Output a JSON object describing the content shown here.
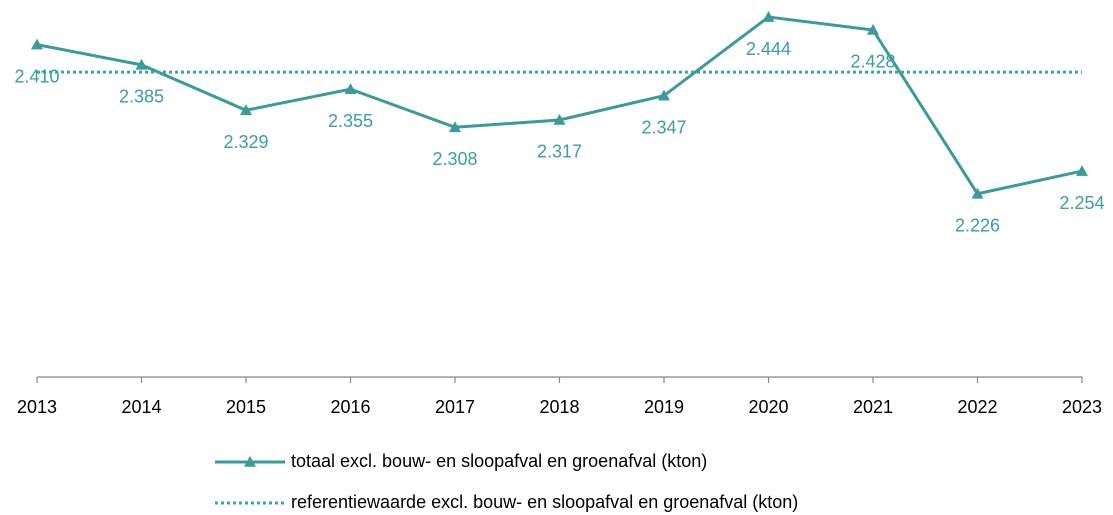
{
  "chart_data": {
    "type": "line",
    "x": [
      "2013",
      "2014",
      "2015",
      "2016",
      "2017",
      "2018",
      "2019",
      "2020",
      "2021",
      "2022",
      "2023"
    ],
    "ylim": [
      2000,
      2465
    ],
    "series": [
      {
        "name": "totaal excl. bouw- en sloopafval en groenafval (kton)",
        "color": "#3a9a9c",
        "style": "solid",
        "marker": "triangle",
        "values": [
          2410,
          2385,
          2329,
          2355,
          2308,
          2317,
          2347,
          2444,
          2428,
          2226,
          2254
        ],
        "value_labels": [
          "2.410",
          "2.385",
          "2.329",
          "2.355",
          "2.308",
          "2.317",
          "2.347",
          "2.444",
          "2.428",
          "2.226",
          "2.254"
        ]
      },
      {
        "name": "referentiewaarde excl. bouw- en sloopafval en groenafval (kton)",
        "color": "#3aa99c",
        "style": "dotted",
        "values": [
          2376,
          2376,
          2376,
          2376,
          2376,
          2376,
          2376,
          2376,
          2376,
          2376,
          2376
        ]
      }
    ]
  }
}
